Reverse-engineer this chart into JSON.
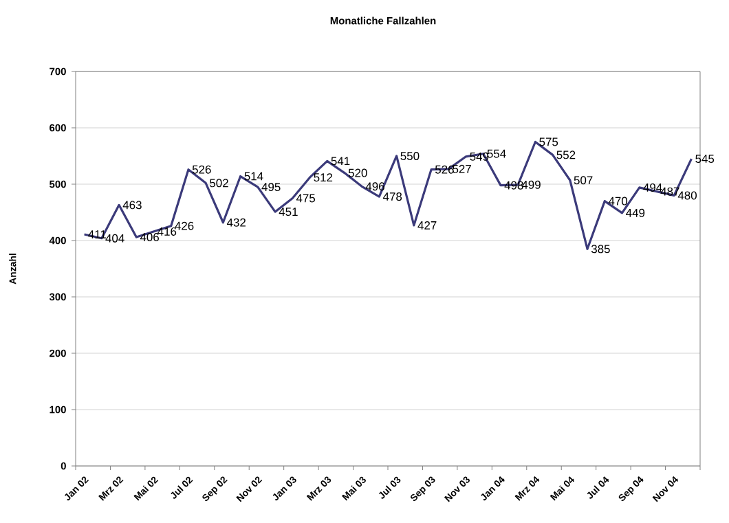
{
  "chart_data": {
    "type": "line",
    "title": "Monatliche Fallzahlen",
    "ylabel": "Anzahl",
    "categories": [
      "Jan 02",
      null,
      "Mrz 02",
      null,
      "Mai 02",
      null,
      "Jul 02",
      null,
      "Sep 02",
      null,
      "Nov 02",
      null,
      "Jan 03",
      null,
      "Mrz 03",
      null,
      "Mai 03",
      null,
      "Jul 03",
      null,
      "Sep 03",
      null,
      "Nov 03",
      null,
      "Jan 04",
      null,
      "Mrz 04",
      null,
      "Mai 04",
      null,
      "Jul 04",
      null,
      "Sep 04",
      null,
      "Nov 04",
      null
    ],
    "values": [
      411,
      404,
      463,
      406,
      416,
      426,
      526,
      502,
      432,
      514,
      495,
      451,
      475,
      512,
      541,
      520,
      496,
      478,
      550,
      427,
      526,
      527,
      549,
      554,
      498,
      499,
      575,
      552,
      507,
      385,
      470,
      449,
      494,
      487,
      480,
      545
    ],
    "color": "#3b3a7a",
    "ylim": [
      0,
      700
    ],
    "yticks": [
      0,
      100,
      200,
      300,
      400,
      500,
      600,
      700
    ],
    "grid": "y",
    "data_labels": true
  }
}
